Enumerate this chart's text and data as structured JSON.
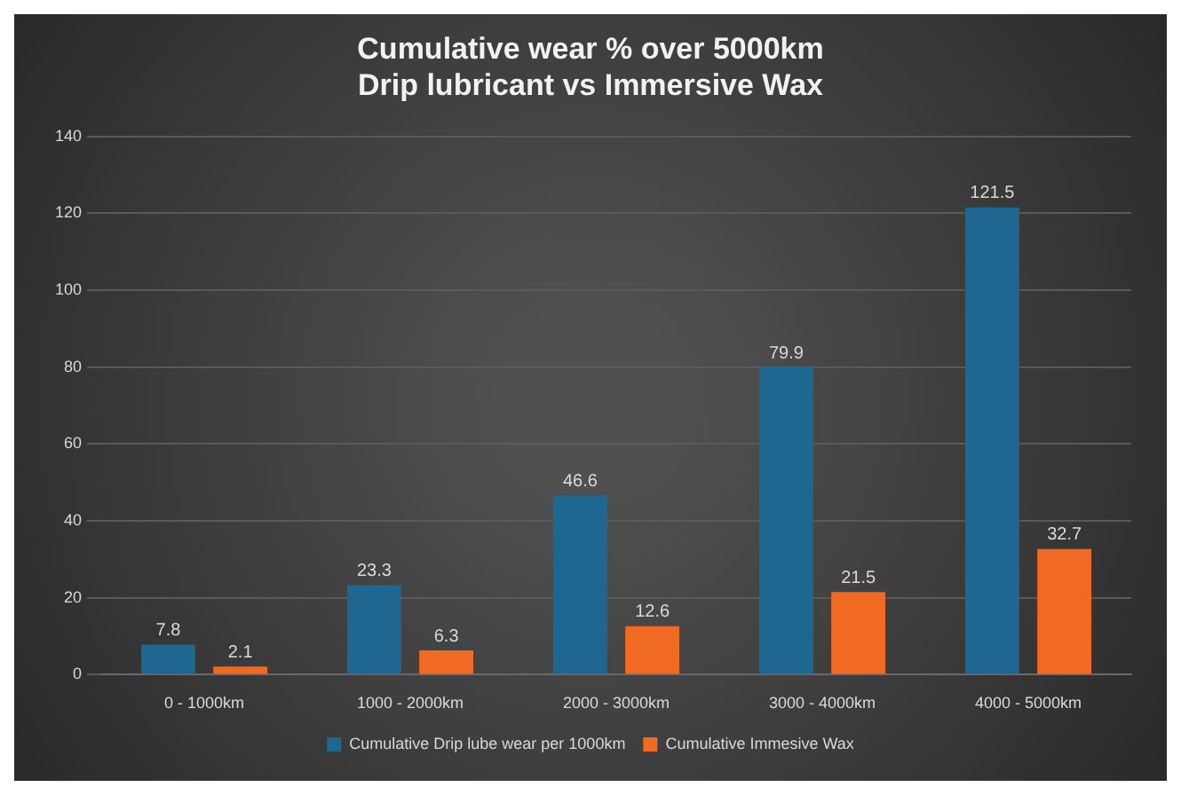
{
  "chart_data": {
    "type": "bar",
    "title": [
      "Cumulative wear % over 5000km",
      "Drip lubricant vs Immersive Wax"
    ],
    "categories": [
      "0 - 1000km",
      "1000 - 2000km",
      "2000 - 3000km",
      "3000 - 4000km",
      "4000 - 5000km"
    ],
    "series": [
      {
        "name": "Cumulative Drip lube wear per 1000km",
        "color": "#1d6790",
        "values": [
          7.8,
          23.3,
          46.6,
          79.9,
          121.5
        ]
      },
      {
        "name": "Cumulative Immesive Wax",
        "color": "#f06a24",
        "values": [
          2.1,
          6.3,
          12.6,
          21.5,
          32.7
        ]
      }
    ],
    "ylim": [
      0,
      140
    ],
    "yticks": [
      0,
      20,
      40,
      60,
      80,
      100,
      120,
      140
    ],
    "grid": "y",
    "legend": "bottom",
    "data_labels": true
  }
}
